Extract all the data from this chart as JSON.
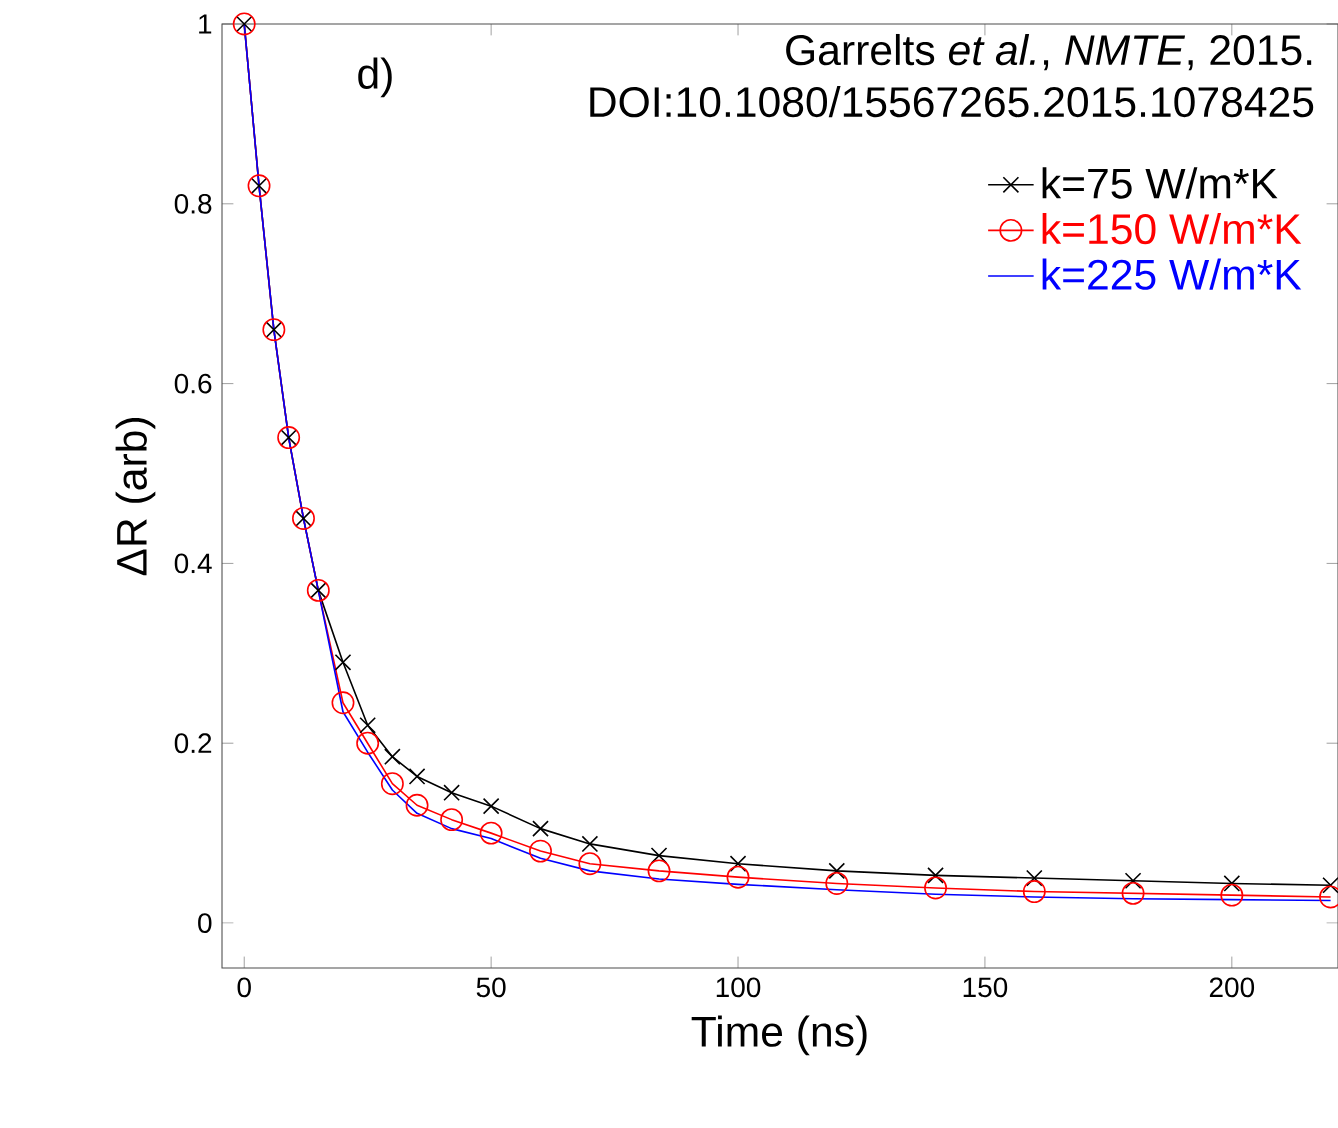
{
  "chart_data": {
    "type": "line",
    "xlabel": "Time (ns)",
    "ylabel": "ΔR (arb)",
    "x": [
      0,
      3,
      6,
      9,
      12,
      15,
      20,
      25,
      30,
      35,
      42,
      50,
      60,
      70,
      84,
      100,
      120,
      140,
      160,
      180,
      200,
      220
    ],
    "series": [
      {
        "name": "k=75 W/m*K",
        "color": "#000000",
        "marker": "cross",
        "values": [
          1.0,
          0.82,
          0.66,
          0.54,
          0.45,
          0.37,
          0.29,
          0.22,
          0.185,
          0.163,
          0.145,
          0.13,
          0.105,
          0.088,
          0.075,
          0.066,
          0.058,
          0.053,
          0.05,
          0.047,
          0.044,
          0.042
        ]
      },
      {
        "name": "k=150 W/m*K",
        "color": "#ff0000",
        "marker": "circle",
        "values": [
          1.0,
          0.82,
          0.66,
          0.54,
          0.45,
          0.37,
          0.245,
          0.2,
          0.155,
          0.131,
          0.115,
          0.1,
          0.08,
          0.066,
          0.058,
          0.051,
          0.044,
          0.039,
          0.035,
          0.033,
          0.031,
          0.029
        ]
      },
      {
        "name": "k=225 W/m*K",
        "color": "#0000ff",
        "marker": "none",
        "values": [
          1.0,
          0.82,
          0.66,
          0.54,
          0.45,
          0.37,
          0.235,
          0.19,
          0.148,
          0.122,
          0.105,
          0.094,
          0.072,
          0.058,
          0.049,
          0.043,
          0.037,
          0.032,
          0.029,
          0.027,
          0.026,
          0.025
        ]
      }
    ],
    "xlim": [
      -4.5,
      221.5
    ],
    "ylim": [
      -0.05,
      1.0
    ],
    "xticks": [
      0,
      50,
      100,
      150,
      200
    ],
    "yticks": [
      0,
      0.2,
      0.4,
      0.6,
      0.8,
      1
    ],
    "grid": false,
    "legend": "top right",
    "annotations": [
      "d)",
      "Garrelts *et al.*, *NMTE*, 2015.",
      "DOI:10.1080/15567265.2015.1078425"
    ]
  }
}
